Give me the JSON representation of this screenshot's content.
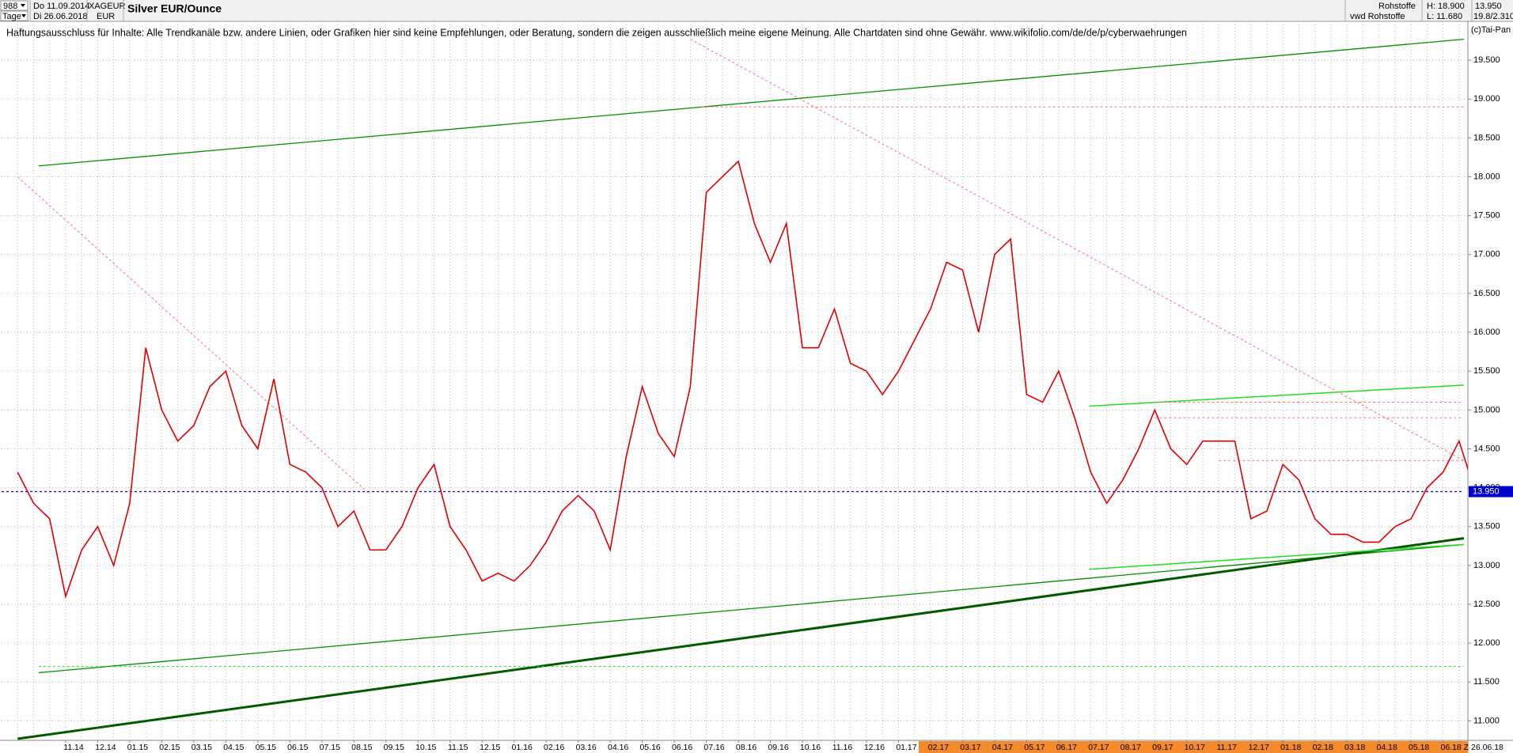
{
  "header": {
    "period_count": "988",
    "period_unit": "Tage",
    "start_date": "Do 11.09.2014",
    "end_date": "Di 26.06.2018",
    "symbol": "XAGEUR",
    "currency": "EUR",
    "source": "Rohstoffe",
    "source_full": "vwd Rohstoffe",
    "high": "H: 18.900",
    "low": "L: 11.680",
    "last": "13.950",
    "change": "19.8/2.310",
    "copyright": "(c)Tai-Pan"
  },
  "chart_data": {
    "type": "line",
    "title": "Silver EUR/Ounce",
    "subtitle": "Haftungsausschluss für Inhalte: Alle Trendkanäle bzw. andere Linien, oder Grafiken hier sind keine Empfehlungen, oder Beratung, sondern die zeigen ausschließlich meine eigene Meinung. Alle Chartdaten sind ohne Gewähr.  www.wikifolio.com/de/de/p/cyberwaehrungen",
    "categories": [
      null,
      null,
      null,
      "11.14",
      null,
      "12.14",
      null,
      "01.15",
      null,
      "02.15",
      null,
      "03.15",
      null,
      "04.15",
      null,
      "05.15",
      null,
      "06.15",
      null,
      "07.15",
      null,
      "08.15",
      null,
      "09.15",
      null,
      "10.15",
      null,
      "11.15",
      null,
      "12.15",
      null,
      "01.16",
      null,
      "02.16",
      null,
      "03.16",
      null,
      "04.16",
      null,
      "05.16",
      null,
      "06.16",
      null,
      "07.16",
      null,
      "08.16",
      null,
      "09.16",
      null,
      "10.16",
      null,
      "11.16",
      null,
      "12.16",
      null,
      "01.17",
      null,
      "02.17",
      null,
      "03.17",
      null,
      "04.17",
      null,
      "05.17",
      null,
      "06.17",
      null,
      "07.17",
      null,
      "08.17",
      null,
      "09.17",
      null,
      "10.17",
      null,
      "11.17",
      null,
      "12.17",
      null,
      "01.18",
      null,
      "02.18",
      null,
      "03.18",
      null,
      "04.18",
      null,
      "05.18",
      null,
      "06.18",
      null,
      null
    ],
    "series": [
      {
        "color": "#e00000",
        "values": [
          14.2,
          13.8,
          13.6,
          12.6,
          13.2,
          13.5,
          13.0,
          13.8,
          15.8,
          15.0,
          14.6,
          14.8,
          15.3,
          15.5,
          14.8,
          14.5,
          15.4,
          14.3,
          14.2,
          14.0,
          13.5,
          13.7,
          13.2,
          13.2,
          13.5,
          14.0,
          14.3,
          13.5,
          13.2,
          12.8,
          12.9,
          12.8,
          13.0,
          13.3,
          13.7,
          13.9,
          13.7,
          13.2,
          14.4,
          15.3,
          14.7,
          14.4,
          15.3,
          17.8,
          18.0,
          18.2,
          17.4,
          16.9,
          17.4,
          15.8,
          15.8,
          16.3,
          15.6,
          15.5,
          15.2,
          15.5,
          15.9,
          16.3,
          16.9,
          16.8,
          16.0,
          17.0,
          17.2,
          15.2,
          15.1,
          15.5,
          14.9,
          14.2,
          13.8,
          14.1,
          14.5,
          15.0,
          14.5,
          14.3,
          14.6,
          14.6,
          14.6,
          13.6,
          13.7,
          14.3,
          14.1,
          13.6,
          13.4,
          13.4,
          13.3,
          13.3,
          13.5,
          13.6,
          14.0,
          14.2,
          14.6,
          13.95
        ]
      }
    ],
    "xlim": [
      -1,
      90.55
    ],
    "ylim": [
      10.75,
      20.0
    ],
    "yticks": [
      {
        "value": 11,
        "label": "11.000"
      },
      {
        "value": 11.5,
        "label": "11.500"
      },
      {
        "value": 12,
        "label": "12.000"
      },
      {
        "value": 12.5,
        "label": "12.500"
      },
      {
        "value": 13,
        "label": "13.000"
      },
      {
        "value": 13.5,
        "label": "13.500"
      },
      {
        "value": 14,
        "label": "14.000"
      },
      {
        "value": 14.5,
        "label": "14.500"
      },
      {
        "value": 15,
        "label": "15.000"
      },
      {
        "value": 15.5,
        "label": "15.500"
      },
      {
        "value": 16,
        "label": "16.000"
      },
      {
        "value": 16.5,
        "label": "16.500"
      },
      {
        "value": 17,
        "label": "17.000"
      },
      {
        "value": 17.5,
        "label": "17.500"
      },
      {
        "value": 18,
        "label": "18.000"
      },
      {
        "value": 18.5,
        "label": "18.500"
      },
      {
        "value": 19,
        "label": "19.000"
      },
      {
        "value": 19.5,
        "label": "19.500"
      }
    ],
    "grid": true,
    "x_end_marker": "Z",
    "x_end_label": "26.06.18",
    "lines": [
      {
        "x": [
          1.31,
          90.3
        ],
        "y": [
          18.14,
          19.77
        ],
        "color": "#009000",
        "width": 1.3,
        "dashed": false
      },
      {
        "x": [
          1.31,
          90.3
        ],
        "y": [
          11.62,
          13.27
        ],
        "color": "#009000",
        "width": 1.3,
        "dashed": false
      },
      {
        "x": [
          0,
          90.3
        ],
        "y": [
          10.77,
          13.35
        ],
        "color": "#005a00",
        "width": 3,
        "dashed": false
      },
      {
        "x": [
          66.9,
          90.3
        ],
        "y": [
          15.05,
          15.32
        ],
        "color": "#22dd22",
        "width": 1.5,
        "dashed": false
      },
      {
        "x": [
          66.9,
          90.3
        ],
        "y": [
          12.95,
          13.27
        ],
        "color": "#22dd22",
        "width": 1.5,
        "dashed": false
      },
      {
        "x": [
          0,
          21.97
        ],
        "y": [
          18.0,
          13.92
        ],
        "color": "#ff7070",
        "width": 1,
        "dashed": true
      },
      {
        "x": [
          42,
          90.3
        ],
        "y": [
          19.77,
          14.35
        ],
        "color": "#ff7070",
        "width": 1,
        "dashed": true
      },
      {
        "x": [
          42.7,
          90.3
        ],
        "y": [
          18.9,
          18.9
        ],
        "color": "#ff7070",
        "width": 1,
        "dashed": true
      },
      {
        "x": [
          71,
          90.3
        ],
        "y": [
          15.1,
          15.1
        ],
        "color": "#ff7070",
        "width": 1,
        "dashed": true
      },
      {
        "x": [
          71,
          90.3
        ],
        "y": [
          14.9,
          14.9
        ],
        "color": "#ff7070",
        "width": 1,
        "dashed": true
      },
      {
        "x": [
          75,
          90.3
        ],
        "y": [
          14.35,
          14.35
        ],
        "color": "#ff7070",
        "width": 1,
        "dashed": true
      },
      {
        "x": [
          1.31,
          90.3
        ],
        "y": [
          11.7,
          11.7
        ],
        "color": "#22dd22",
        "width": 1,
        "dashed": true
      },
      {
        "x": [
          -1,
          90.3
        ],
        "y": [
          13.95,
          13.95
        ],
        "color": "#0000cc",
        "width": 1.3,
        "dashed": true,
        "label": "13.950"
      }
    ]
  }
}
